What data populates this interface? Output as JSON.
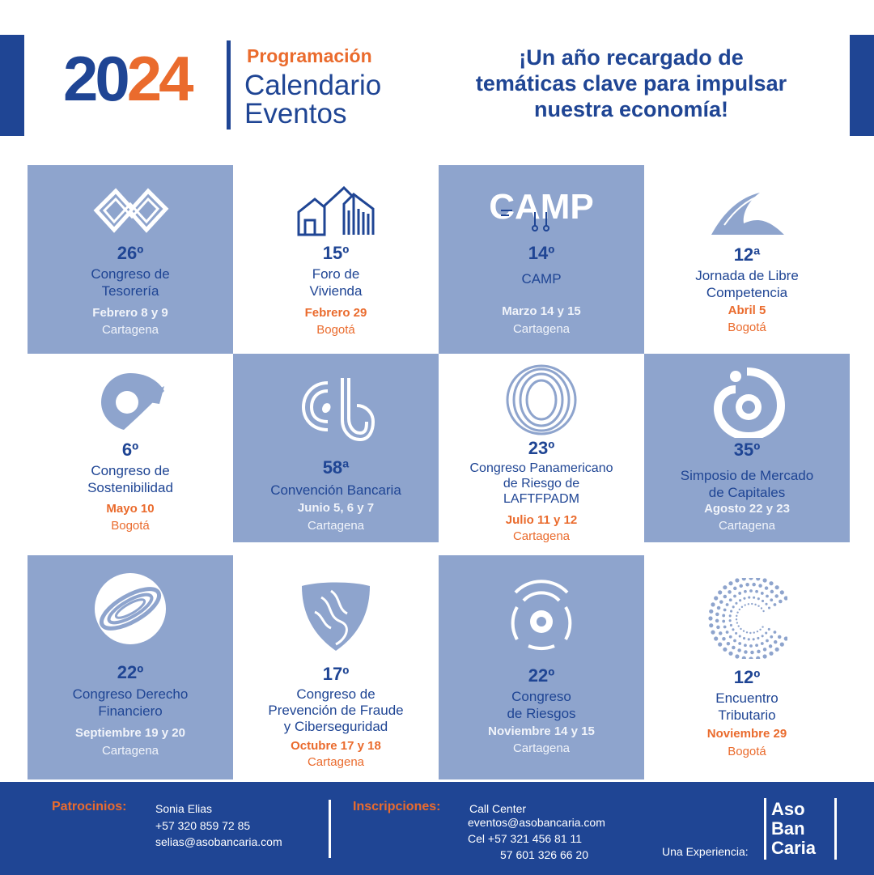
{
  "header": {
    "year_a": "20",
    "year_b": "24",
    "subtitle": "Programación",
    "title_line1": "Calendario",
    "title_line2": "Eventos",
    "tagline_line1": "¡Un año recargado de",
    "tagline_line2": "temáticas clave para impulsar",
    "tagline_line3": "nuestra economía!"
  },
  "colors": {
    "primary": "#1f4594",
    "accent": "#ea6b2d",
    "tile": "#8ea4cd"
  },
  "events": [
    {
      "num": "26º",
      "name1": "Congreso de",
      "name2": "Tesorería",
      "date": "Febrero 8 y 9",
      "city": "Cartagena",
      "icon": "infinity-icon"
    },
    {
      "num": "15º",
      "name1": "Foro de",
      "name2": "Vivienda",
      "date": "Febrero 29",
      "city": "Bogotá",
      "icon": "houses-icon"
    },
    {
      "num": "14º",
      "name1": "CAMP",
      "name2": "",
      "date": "Marzo 14 y 15",
      "city": "Cartagena",
      "icon": "camp-logo-icon",
      "logo_text": "CAMP"
    },
    {
      "num": "12ª",
      "name1": "Jornada de Libre",
      "name2": "Competencia",
      "date": "Abril 5",
      "city": "Bogotá",
      "icon": "wave-icon"
    },
    {
      "num": "6º",
      "name1": "Congreso de",
      "name2": "Sostenibilidad",
      "date": "Mayo 10",
      "city": "Bogotá",
      "icon": "gear-leaf-icon"
    },
    {
      "num": "58ª",
      "name1": "Convención Bancaria",
      "name2": "",
      "date": "Junio 5, 6 y 7",
      "city": "Cartagena",
      "icon": "cb-logo-icon"
    },
    {
      "num": "23º",
      "name1": "Congreso Panamericano",
      "name2": "de Riesgo de",
      "name3": "LAFTFPADM",
      "date": "Julio 11 y 12",
      "city": "Cartagena",
      "icon": "torus-icon"
    },
    {
      "num": "35º",
      "name1": "Simposio de Mercado",
      "name2": "de Capitales",
      "date": "Agosto 22 y 23",
      "city": "Cartagena",
      "icon": "spiral-icon"
    },
    {
      "num": "22º",
      "name1": "Congreso Derecho",
      "name2": "Financiero",
      "date": "Septiembre 19 y 20",
      "city": "Cartagena",
      "icon": "ring-icon"
    },
    {
      "num": "17º",
      "name1": "Congreso de",
      "name2": "Prevención de Fraude",
      "name3": "y Ciberseguridad",
      "date": "Octubre 17 y 18",
      "city": "Cartagena",
      "icon": "shield-icon"
    },
    {
      "num": "22º",
      "name1": "Congreso",
      "name2": "de Riesgos",
      "date": "Noviembre 14 y 15",
      "city": "Cartagena",
      "icon": "signal-icon"
    },
    {
      "num": "12º",
      "name1": "Encuentro",
      "name2": "Tributario",
      "date": "Noviembre 29",
      "city": "Bogotá",
      "icon": "dots-arc-icon"
    }
  ],
  "footer": {
    "sponsor_label": "Patrocinios:",
    "sponsor_name": "Sonia Elias",
    "sponsor_phone": "+57 320 859 72 85",
    "sponsor_email": "selias@asobancaria.com",
    "register_label": "Inscripciones:",
    "register_line1": "Call Center",
    "register_email": "eventos@asobancaria.com",
    "register_cel": "Cel +57 321 456 81 11",
    "register_phone": "57 601 326 66 20",
    "experience_label": "Una Experiencia:",
    "logo_line1": "Aso",
    "logo_line2": "Ban",
    "logo_line3": "Caria"
  }
}
